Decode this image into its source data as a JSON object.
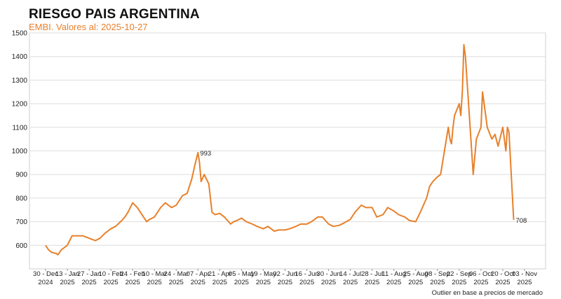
{
  "chart_data": {
    "type": "line",
    "title": "RIESGO PAIS ARGENTINA",
    "subtitle": "EMBI. Valores al: 2025-10-27",
    "footnote": "Outlier en base a precios de mercado",
    "xlabel": "",
    "ylabel": "",
    "ylim": [
      500,
      1500
    ],
    "yticks": [
      600,
      700,
      800,
      900,
      1000,
      1100,
      1200,
      1300,
      1400,
      1500
    ],
    "grid": true,
    "line_color": "#e8802a",
    "x_ticks": [
      {
        "date": "2024-12-30",
        "line1": "30 - Dec",
        "line2": "2024"
      },
      {
        "date": "2025-01-13",
        "line1": "13 - Jan",
        "line2": "2025"
      },
      {
        "date": "2025-01-27",
        "line1": "27 - Jan",
        "line2": "2025"
      },
      {
        "date": "2025-02-10",
        "line1": "10 - Feb",
        "line2": "2025"
      },
      {
        "date": "2025-02-24",
        "line1": "24 - Feb",
        "line2": "2025"
      },
      {
        "date": "2025-03-10",
        "line1": "10 - Mar",
        "line2": "2025"
      },
      {
        "date": "2025-03-24",
        "line1": "24 - Mar",
        "line2": "2025"
      },
      {
        "date": "2025-04-07",
        "line1": "07 - Apr",
        "line2": "2025"
      },
      {
        "date": "2025-04-21",
        "line1": "21 - Apr",
        "line2": "2025"
      },
      {
        "date": "2025-05-05",
        "line1": "05 - May",
        "line2": "2025"
      },
      {
        "date": "2025-05-19",
        "line1": "19 - May",
        "line2": "2025"
      },
      {
        "date": "2025-06-02",
        "line1": "02 - Jun",
        "line2": "2025"
      },
      {
        "date": "2025-06-16",
        "line1": "16 - Jun",
        "line2": "2025"
      },
      {
        "date": "2025-06-30",
        "line1": "30 - Jun",
        "line2": "2025"
      },
      {
        "date": "2025-07-14",
        "line1": "14 - Jul",
        "line2": "2025"
      },
      {
        "date": "2025-07-28",
        "line1": "28 - Jul",
        "line2": "2025"
      },
      {
        "date": "2025-08-11",
        "line1": "11 - Aug",
        "line2": "2025"
      },
      {
        "date": "2025-08-25",
        "line1": "25 - Aug",
        "line2": "2025"
      },
      {
        "date": "2025-09-08",
        "line1": "08 - Sep",
        "line2": "2025"
      },
      {
        "date": "2025-09-22",
        "line1": "22 - Sep",
        "line2": "2025"
      },
      {
        "date": "2025-10-06",
        "line1": "06 - Oct",
        "line2": "2025"
      },
      {
        "date": "2025-10-20",
        "line1": "20 - Oct",
        "line2": "2025"
      },
      {
        "date": "2025-11-03",
        "line1": "03 - Nov",
        "line2": "2025"
      }
    ],
    "annotations": [
      {
        "date": "2025-04-07",
        "value": 993,
        "text": "993"
      },
      {
        "date": "2025-10-27",
        "value": 708,
        "text": "708"
      }
    ],
    "series": [
      {
        "x": [
          "2024-12-30",
          "2025-01-01",
          "2025-01-03",
          "2025-01-06",
          "2025-01-07",
          "2025-01-09",
          "2025-01-13",
          "2025-01-16",
          "2025-01-20",
          "2025-01-23",
          "2025-01-27",
          "2025-01-29",
          "2025-01-31",
          "2025-02-03",
          "2025-02-06",
          "2025-02-10",
          "2025-02-13",
          "2025-02-17",
          "2025-02-19",
          "2025-02-21",
          "2025-02-24",
          "2025-02-27",
          "2025-03-03",
          "2025-03-05",
          "2025-03-07",
          "2025-03-10",
          "2025-03-12",
          "2025-03-14",
          "2025-03-17",
          "2025-03-19",
          "2025-03-21",
          "2025-03-24",
          "2025-03-26",
          "2025-03-28",
          "2025-03-31",
          "2025-04-03",
          "2025-04-05",
          "2025-04-07",
          "2025-04-08",
          "2025-04-09",
          "2025-04-11",
          "2025-04-14",
          "2025-04-16",
          "2025-04-18",
          "2025-04-21",
          "2025-04-24",
          "2025-04-28",
          "2025-04-30",
          "2025-05-02",
          "2025-05-05",
          "2025-05-08",
          "2025-05-12",
          "2025-05-15",
          "2025-05-19",
          "2025-05-22",
          "2025-05-26",
          "2025-05-29",
          "2025-06-02",
          "2025-06-05",
          "2025-06-09",
          "2025-06-12",
          "2025-06-16",
          "2025-06-19",
          "2025-06-23",
          "2025-06-26",
          "2025-06-30",
          "2025-07-03",
          "2025-07-07",
          "2025-07-10",
          "2025-07-14",
          "2025-07-17",
          "2025-07-21",
          "2025-07-24",
          "2025-07-28",
          "2025-07-31",
          "2025-08-04",
          "2025-08-07",
          "2025-08-11",
          "2025-08-14",
          "2025-08-18",
          "2025-08-21",
          "2025-08-25",
          "2025-08-28",
          "2025-09-01",
          "2025-09-03",
          "2025-09-05",
          "2025-09-08",
          "2025-09-10",
          "2025-09-12",
          "2025-09-15",
          "2025-09-16",
          "2025-09-17",
          "2025-09-18",
          "2025-09-19",
          "2025-09-22",
          "2025-09-23",
          "2025-09-24",
          "2025-09-25",
          "2025-09-26",
          "2025-09-29",
          "2025-10-01",
          "2025-10-03",
          "2025-10-06",
          "2025-10-07",
          "2025-10-09",
          "2025-10-10",
          "2025-10-13",
          "2025-10-15",
          "2025-10-17",
          "2025-10-20",
          "2025-10-21",
          "2025-10-22",
          "2025-10-23",
          "2025-10-24",
          "2025-10-27"
        ],
        "values": [
          600,
          580,
          570,
          565,
          560,
          580,
          600,
          640,
          640,
          640,
          630,
          625,
          620,
          630,
          650,
          670,
          680,
          705,
          720,
          740,
          780,
          760,
          720,
          700,
          710,
          720,
          740,
          760,
          780,
          770,
          760,
          770,
          790,
          810,
          820,
          880,
          940,
          993,
          950,
          870,
          900,
          860,
          740,
          730,
          735,
          720,
          690,
          700,
          705,
          715,
          700,
          690,
          680,
          670,
          680,
          660,
          665,
          665,
          670,
          680,
          690,
          690,
          700,
          720,
          720,
          690,
          680,
          685,
          695,
          710,
          740,
          770,
          760,
          760,
          720,
          730,
          760,
          745,
          730,
          720,
          705,
          700,
          740,
          800,
          850,
          870,
          890,
          900,
          980,
          1100,
          1050,
          1030,
          1100,
          1150,
          1200,
          1150,
          1250,
          1450,
          1400,
          1100,
          900,
          1050,
          1100,
          1250,
          1150,
          1100,
          1050,
          1070,
          1020,
          1100,
          1050,
          1000,
          1100,
          1080,
          708
        ]
      }
    ]
  }
}
